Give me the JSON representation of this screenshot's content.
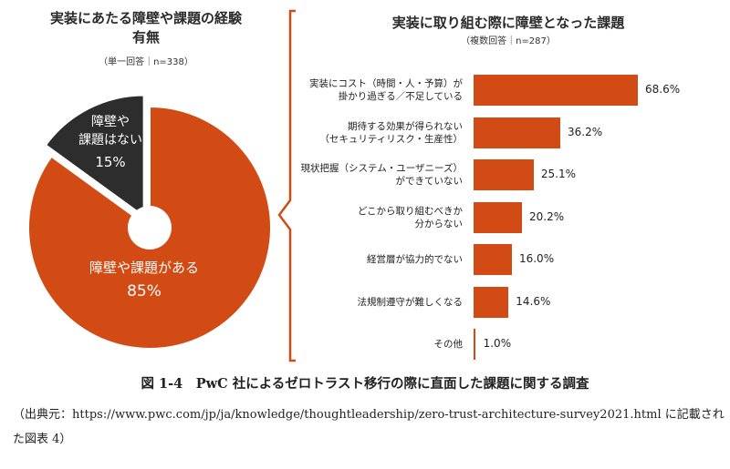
{
  "left": {
    "title_line1": "実装にあたる障壁や課題の経験",
    "title_line2": "有無",
    "note": "（単一回答｜n=338）"
  },
  "right": {
    "title": "実装に取り組む際に障壁となった課題",
    "note": "（複数回答｜n=287）"
  },
  "colors": {
    "accent": "#d24b14",
    "dark": "#2d2d2d"
  },
  "chart_data": [
    {
      "type": "pie",
      "title": "実装にあたる障壁や課題の経験有無",
      "note": "（単一回答｜n=338）",
      "slices": [
        {
          "label": "障壁や課題がある",
          "value": 85,
          "value_label": "85%",
          "color": "#d24b14"
        },
        {
          "label": "障壁や課題はない",
          "label_lines": [
            "障壁や",
            "課題はない"
          ],
          "value": 15,
          "value_label": "15%",
          "color": "#2d2d2d"
        }
      ]
    },
    {
      "type": "bar",
      "orientation": "horizontal",
      "title": "実装に取り組む際に障壁となった課題",
      "note": "（複数回答｜n=287）",
      "categories": [
        [
          "実装にコスト（時間・人・予算）が",
          "掛かり過ぎる／不足している"
        ],
        [
          "期待する効果が得られない",
          "（セキュリティリスク・生産性）"
        ],
        [
          "現状把握（システム・ユーザニーズ）",
          "ができていない"
        ],
        [
          "どこから取り組むべきか",
          "分からない"
        ],
        [
          "経営層が協力的でない"
        ],
        [
          "法規制遵守が難しくなる"
        ],
        [
          "その他"
        ]
      ],
      "values": [
        68.6,
        36.2,
        25.1,
        20.2,
        16.0,
        14.6,
        1.0
      ],
      "value_labels": [
        "68.6%",
        "36.2%",
        "25.1%",
        "20.2%",
        "16.0%",
        "14.6%",
        "1.0%"
      ],
      "color": "#d24b14"
    }
  ],
  "caption": {
    "title": "図 1-4　PwC 社によるゼロトラスト移行の際に直面した課題に関する調査",
    "source": "（出典元：https://www.pwc.com/jp/ja/knowledge/thoughtleadership/zero-trust-architecture-survey2021.html に記載された図表 4）"
  }
}
